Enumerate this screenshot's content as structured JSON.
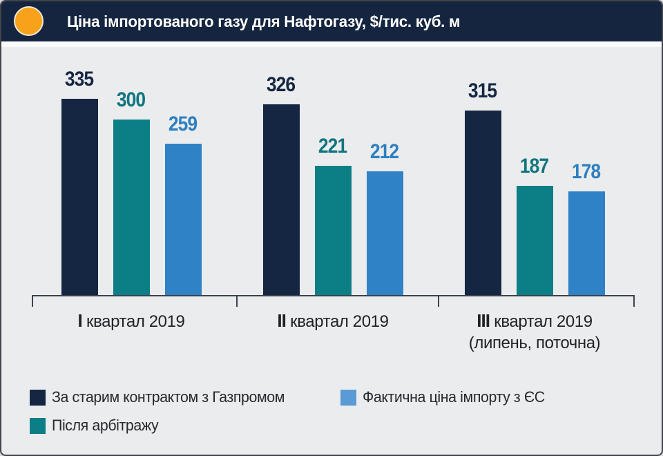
{
  "header": {
    "bullet_color": "#F8A21C"
  },
  "chart_data": {
    "type": "bar",
    "title": "Ціна імпортованого газу для Нафтогазу, $/тис. куб. м",
    "unit": "$/тис. куб. м",
    "categories": [
      "І квартал 2019",
      "ІІ квартал 2019",
      "ІІІ квартал 2019 (липень, поточна)"
    ],
    "x_labels": [
      {
        "numeral": "І",
        "rest": "квартал 2019",
        "sub": ""
      },
      {
        "numeral": "ІІ",
        "rest": "квартал 2019",
        "sub": ""
      },
      {
        "numeral": "ІІІ",
        "rest": "квартал 2019",
        "sub": "(липень, поточна)"
      }
    ],
    "series": [
      {
        "name": "За старим контрактом з Газпромом",
        "values": [
          335,
          326,
          315
        ],
        "color": "#152642",
        "label_color": "#152642",
        "legend_swatch": "#152642"
      },
      {
        "name": "Після арбітражу",
        "values": [
          300,
          221,
          187
        ],
        "color": "#0B7E86",
        "label_color": "#10757E",
        "legend_swatch": "#0B7E86"
      },
      {
        "name": "Фактична ціна імпорту з ЄС",
        "values": [
          259,
          212,
          178
        ],
        "color": "#2E82C5",
        "label_color": "#2E7FC0",
        "legend_swatch": "#5B9BD5"
      }
    ],
    "ylim": [
      0,
      360
    ],
    "value_labels": true,
    "grid": false,
    "legend_position": "bottom"
  },
  "colors": {
    "header_bg": "#15253F",
    "page_bg": "#EBECEE",
    "axis": "#3A4150"
  }
}
